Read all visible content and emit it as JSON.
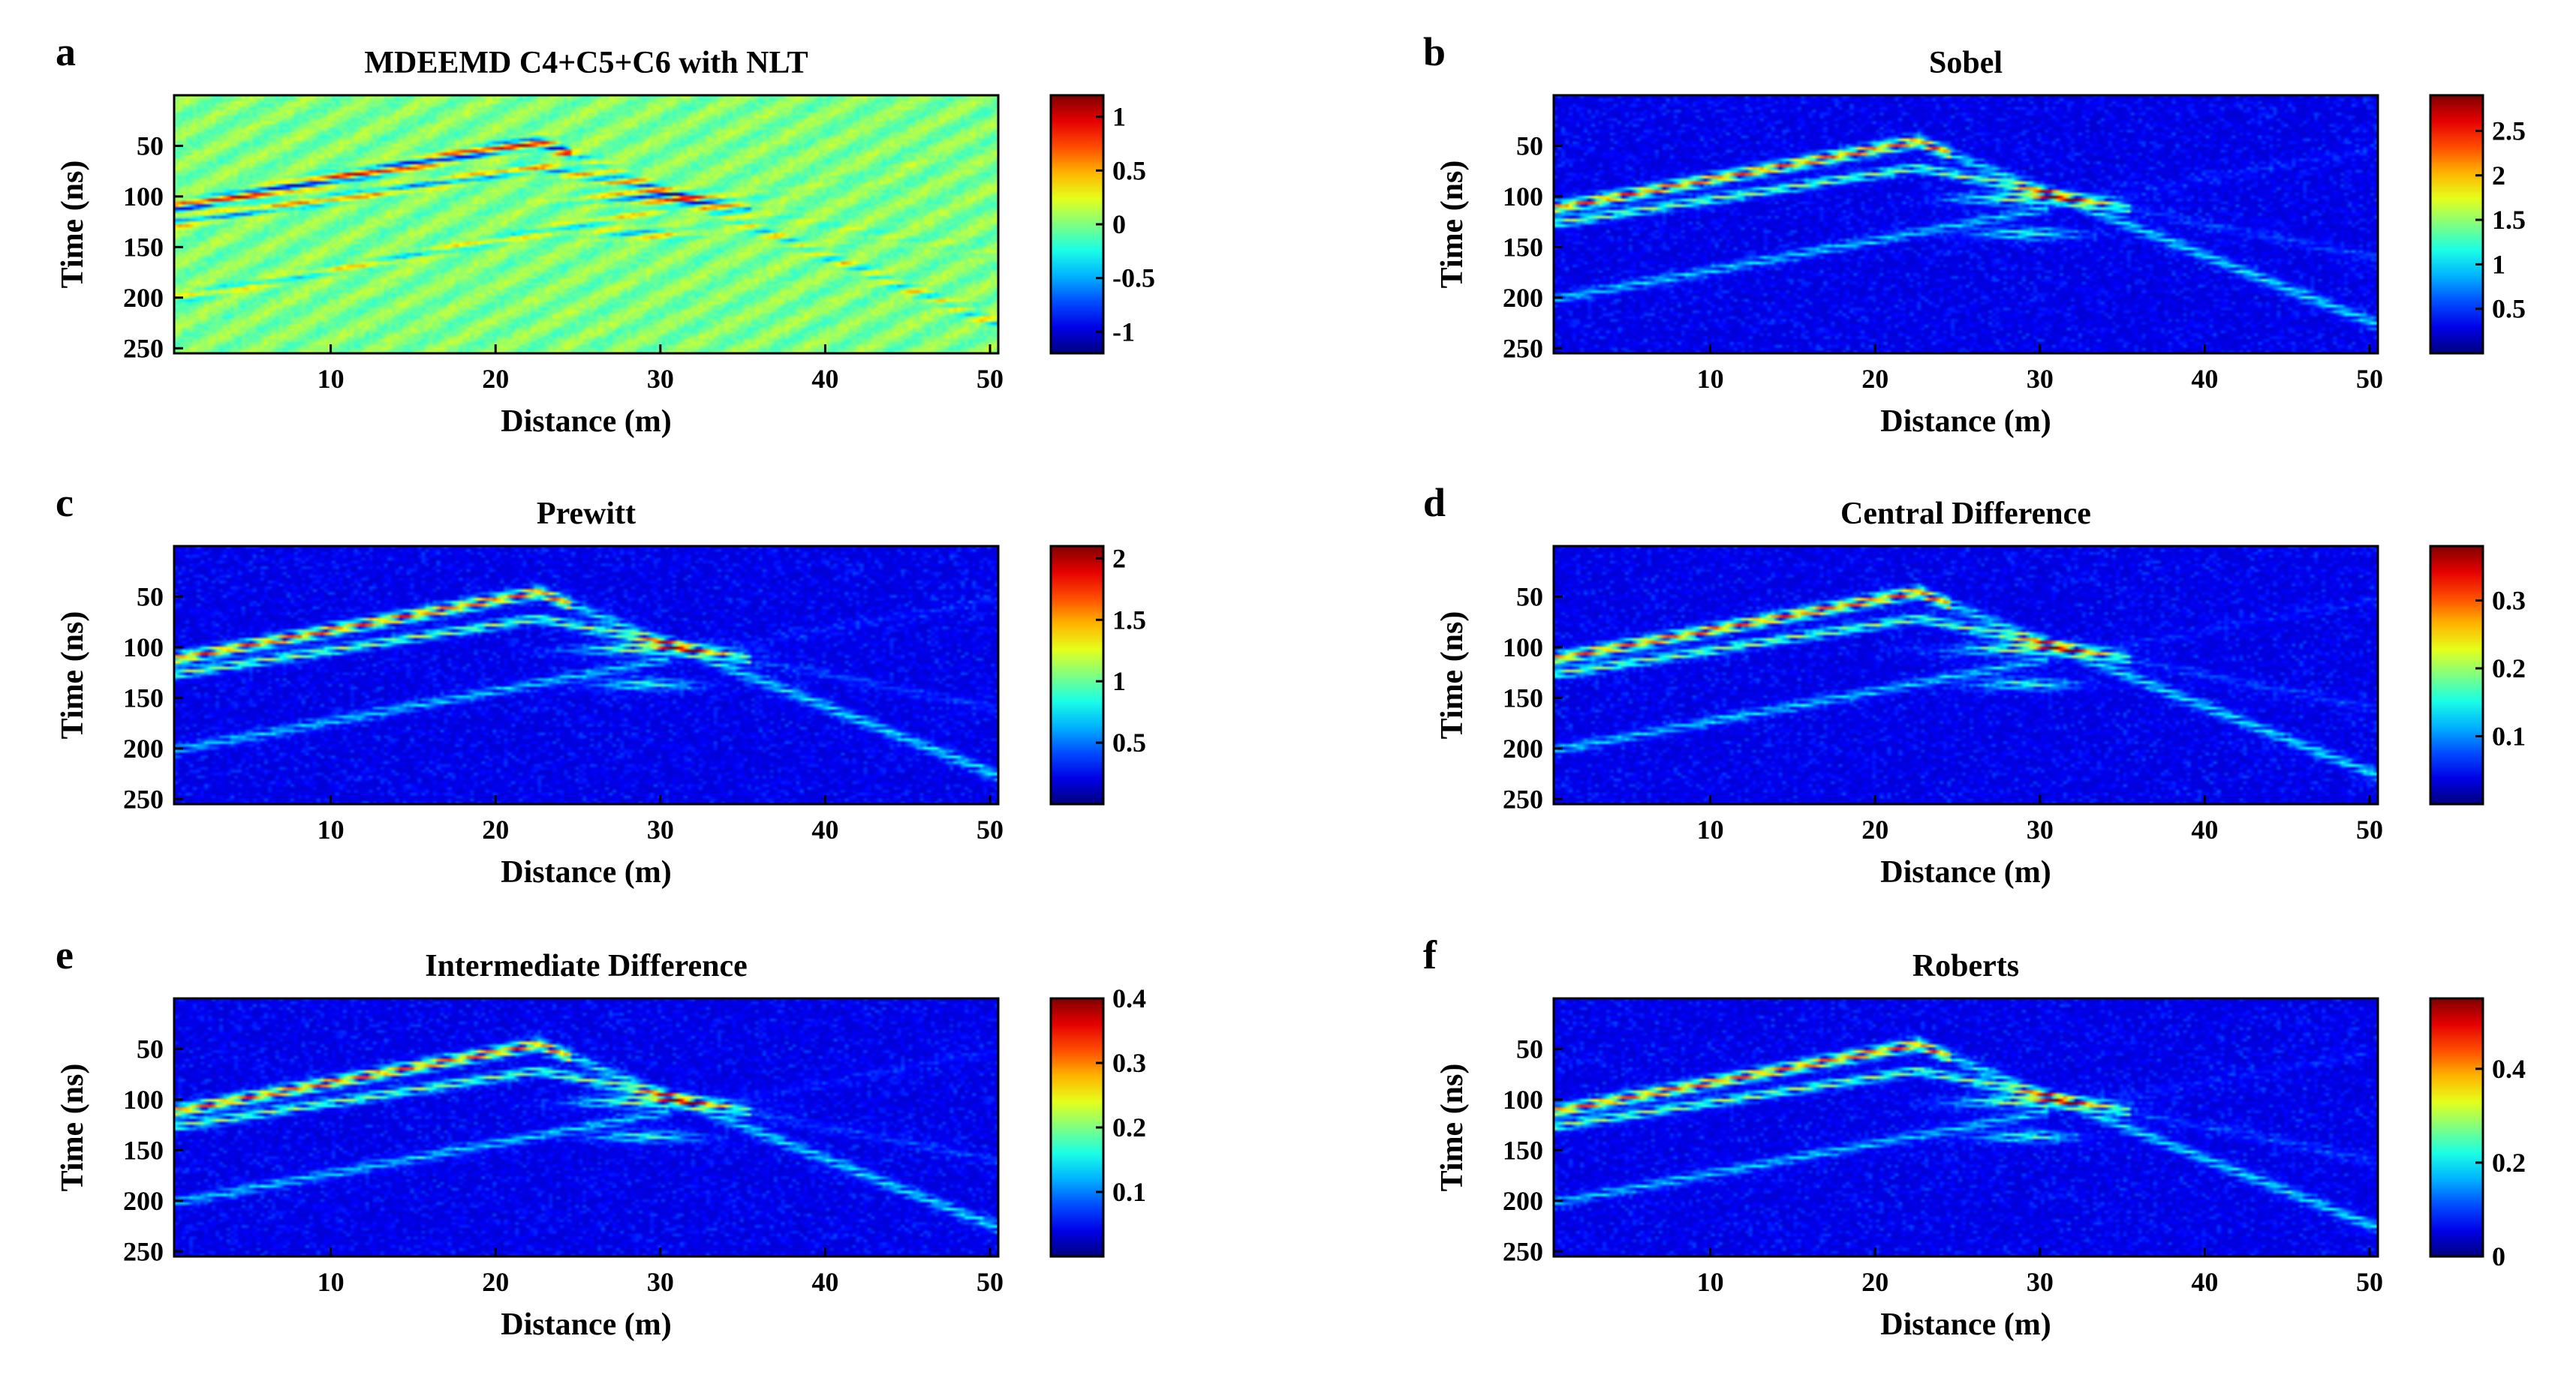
{
  "figure": {
    "x_ticks": [
      10,
      20,
      30,
      40,
      50
    ],
    "y_ticks": [
      50,
      100,
      150,
      200,
      250
    ]
  },
  "chart_data": [
    {
      "type": "heatmap",
      "panel_letter": "a",
      "title": "MDEEMD C4+C5+C6 with NLT",
      "xlabel": "Distance (m)",
      "ylabel": "Time (ns)",
      "xlim": [
        0.5,
        50.5
      ],
      "ylim": [
        0,
        255
      ],
      "colormap": "jet",
      "clim": [
        -1.2,
        1.2
      ],
      "colorbar_ticks": [
        1,
        0.5,
        0,
        -0.5,
        -1
      ],
      "colorbar_labels": [
        "1",
        "0.5",
        "0",
        "-0.5",
        "-1"
      ]
    },
    {
      "type": "heatmap",
      "panel_letter": "b",
      "title": "Sobel",
      "xlabel": "Distance (m)",
      "ylabel": "Time (ns)",
      "xlim": [
        0.5,
        50.5
      ],
      "ylim": [
        0,
        255
      ],
      "colormap": "jet",
      "clim": [
        0,
        2.9
      ],
      "colorbar_ticks": [
        2.5,
        2,
        1.5,
        1,
        0.5
      ],
      "colorbar_labels": [
        "2.5",
        "2",
        "1.5",
        "1",
        "0.5"
      ]
    },
    {
      "type": "heatmap",
      "panel_letter": "c",
      "title": "Prewitt",
      "xlabel": "Distance (m)",
      "ylabel": "Time (ns)",
      "xlim": [
        0.5,
        50.5
      ],
      "ylim": [
        0,
        255
      ],
      "colormap": "jet",
      "clim": [
        0,
        2.1
      ],
      "colorbar_ticks": [
        2,
        1.5,
        1,
        0.5
      ],
      "colorbar_labels": [
        "2",
        "1.5",
        "1",
        "0.5"
      ]
    },
    {
      "type": "heatmap",
      "panel_letter": "d",
      "title": "Central Difference",
      "xlabel": "Distance (m)",
      "ylabel": "Time (ns)",
      "xlim": [
        0.5,
        50.5
      ],
      "ylim": [
        0,
        255
      ],
      "colormap": "jet",
      "clim": [
        0,
        0.38
      ],
      "colorbar_ticks": [
        0.3,
        0.2,
        0.1
      ],
      "colorbar_labels": [
        "0.3",
        "0.2",
        "0.1"
      ]
    },
    {
      "type": "heatmap",
      "panel_letter": "e",
      "title": "Intermediate Difference",
      "xlabel": "Distance (m)",
      "ylabel": "Time (ns)",
      "xlim": [
        0.5,
        50.5
      ],
      "ylim": [
        0,
        255
      ],
      "colormap": "jet",
      "clim": [
        0,
        0.4
      ],
      "colorbar_ticks": [
        0.4,
        0.3,
        0.2,
        0.1
      ],
      "colorbar_labels": [
        "0.4",
        "0.3",
        "0.2",
        "0.1"
      ]
    },
    {
      "type": "heatmap",
      "panel_letter": "f",
      "title": "Roberts",
      "xlabel": "Distance (m)",
      "ylabel": "Time (ns)",
      "xlim": [
        0.5,
        50.5
      ],
      "ylim": [
        0,
        255
      ],
      "colormap": "jet",
      "clim": [
        0,
        0.55
      ],
      "colorbar_ticks": [
        0.4,
        0.2,
        0
      ],
      "colorbar_labels": [
        "0.4",
        "0.2",
        "0"
      ]
    }
  ]
}
